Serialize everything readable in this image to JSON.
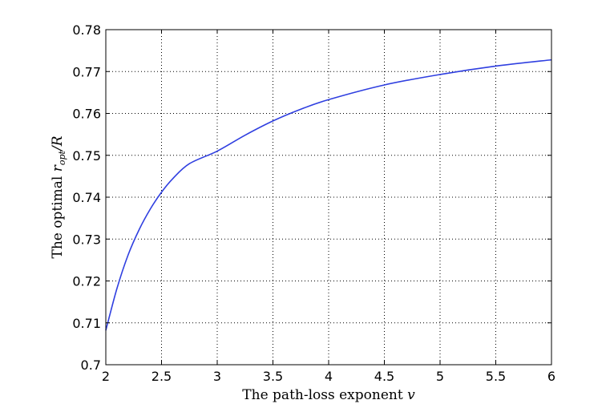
{
  "chart_data": {
    "type": "line",
    "xlabel_text": "The path-loss exponent",
    "xlabel_var": "v",
    "ylabel_text": "The optimal",
    "ylabel_var": "r",
    "ylabel_sub": "opt",
    "ylabel_rest": "/R",
    "xlim": [
      2,
      6
    ],
    "ylim": [
      0.7,
      0.78
    ],
    "xticks": [
      2,
      2.5,
      3,
      3.5,
      4,
      4.5,
      5,
      5.5,
      6
    ],
    "xtick_labels": [
      "2",
      "2.5",
      "3",
      "3.5",
      "4",
      "4.5",
      "5",
      "5.5",
      "6"
    ],
    "yticks": [
      0.7,
      0.71,
      0.72,
      0.73,
      0.74,
      0.75,
      0.76,
      0.77,
      0.78
    ],
    "ytick_labels": [
      "0.7",
      "0.71",
      "0.72",
      "0.73",
      "0.74",
      "0.75",
      "0.76",
      "0.77",
      "0.78"
    ],
    "grid": true,
    "series": [
      {
        "color": "#2f3fe0",
        "x": [
          2.0,
          2.1,
          2.2,
          2.3,
          2.4,
          2.5,
          2.6,
          2.75,
          3.0,
          3.25,
          3.5,
          3.75,
          4.0,
          4.5,
          5.0,
          5.5,
          6.0
        ],
        "y": [
          0.7082,
          0.7182,
          0.7262,
          0.7323,
          0.7372,
          0.7412,
          0.7444,
          0.748,
          0.751,
          0.7548,
          0.7582,
          0.761,
          0.7633,
          0.7668,
          0.7693,
          0.7713,
          0.7728
        ]
      }
    ]
  }
}
